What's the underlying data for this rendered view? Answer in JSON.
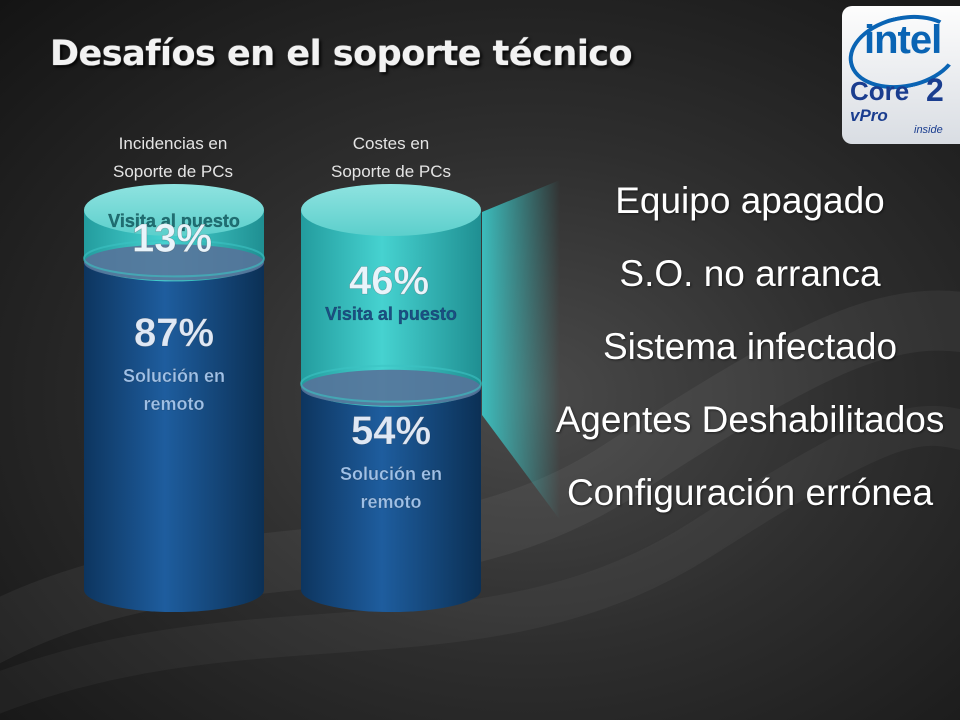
{
  "slide": {
    "title": "Desafíos en el soporte técnico"
  },
  "logo": {
    "brand": "intel",
    "product": "Core",
    "product_number": "2",
    "line": "vPro",
    "tagline": "inside"
  },
  "chart_data": {
    "type": "bar",
    "stacked": true,
    "style": "cylinder",
    "categories": [
      "Incidencias en\nSoporte de PCs",
      "Costes en\nSoporte de PCs"
    ],
    "category_lines": [
      [
        "Incidencias en",
        "Soporte de PCs"
      ],
      [
        "Costes en",
        "Soporte de PCs"
      ]
    ],
    "series": [
      {
        "name": "Solución en remoto",
        "label_lines": [
          "Solución en",
          "remoto"
        ],
        "values": [
          87,
          54
        ],
        "value_labels": [
          "87%",
          "54%"
        ],
        "color": "#164f8c"
      },
      {
        "name": "Visita al puesto",
        "label_lines": [
          "Visita al puesto"
        ],
        "values": [
          13,
          46
        ],
        "value_labels": [
          "13%",
          "46%"
        ],
        "color": "#3cc3c3"
      }
    ],
    "ylim": [
      0,
      100
    ],
    "unit": "%"
  },
  "reasons": [
    "Equipo apagado",
    "S.O. no arranca",
    "Sistema infectado",
    "Agentes Deshabilitados",
    "Configuración errónea"
  ],
  "colors": {
    "remote": "#164f8c",
    "visit": "#3cc3c3",
    "text": "#ffffff"
  }
}
